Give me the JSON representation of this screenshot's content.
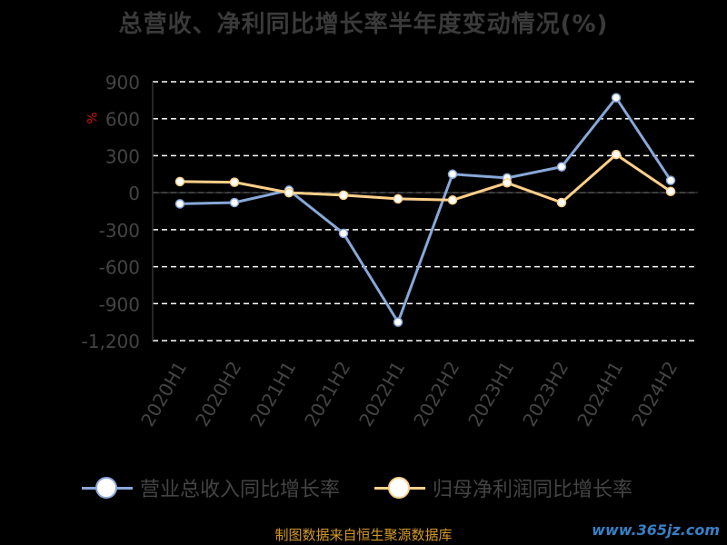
{
  "title": "总营收、净利同比增长率半年度变动情况(%)",
  "unit_label": "%",
  "legend": {
    "series1": "营业总收入同比增长率",
    "series2": "归母净利润同比增长率"
  },
  "source_note": "制图数据来自恒生聚源数据库",
  "watermark": "www.365jz.com",
  "colors": {
    "series1": "#88a8d8",
    "series2": "#ffd08a",
    "grid": "#ffffff",
    "axis_text": "#444444"
  },
  "chart_data": {
    "type": "line",
    "title": "总营收、净利同比增长率半年度变动情况(%)",
    "categories": [
      "2020H1",
      "2020H2",
      "2021H1",
      "2021H2",
      "2022H1",
      "2022H2",
      "2023H1",
      "2023H2",
      "2024H1",
      "2024H2"
    ],
    "series": [
      {
        "name": "营业总收入同比增长率",
        "values": [
          -90,
          -80,
          20,
          -330,
          -1050,
          150,
          120,
          210,
          770,
          100
        ]
      },
      {
        "name": "归母净利润同比增长率",
        "values": [
          90,
          85,
          0,
          -20,
          -50,
          -60,
          80,
          -80,
          310,
          10
        ]
      }
    ],
    "yticks": [
      900,
      600,
      300,
      0,
      -300,
      -600,
      -900,
      -1200
    ],
    "ytick_labels": [
      "900",
      "600",
      "300",
      "0",
      "-300",
      "-600",
      "-900",
      "-1,200"
    ],
    "ylim": [
      -1200,
      900
    ],
    "grid": true,
    "legend_position": "bottom"
  }
}
